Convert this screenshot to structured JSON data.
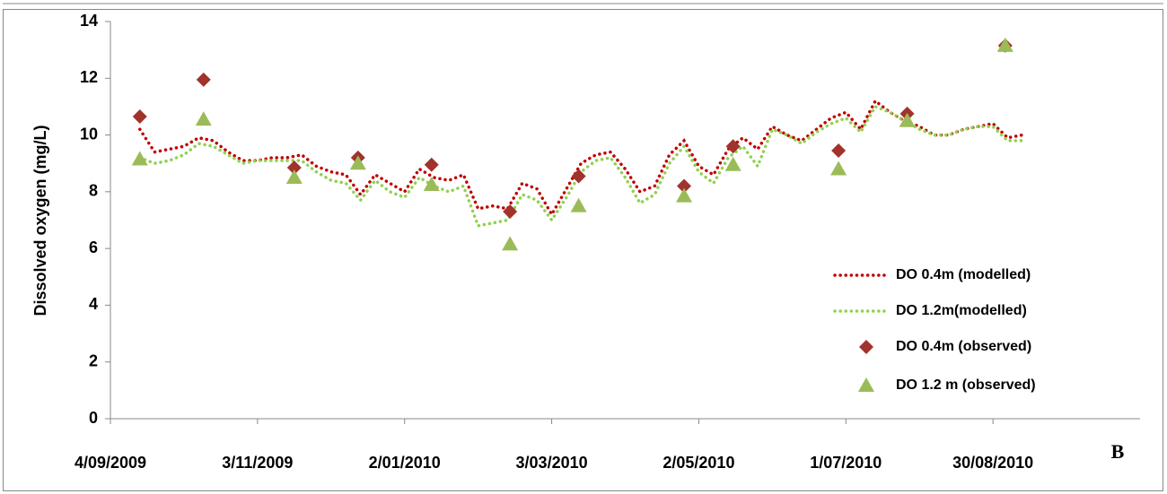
{
  "chart_data": {
    "type": "line",
    "y_label": "Dissolved oxygen (mg/L)",
    "annotation": "B",
    "xlim": [
      "2009-09-04",
      "2010-10-29"
    ],
    "xticks": [
      {
        "value": "2009-09-04",
        "label": "4/09/2009"
      },
      {
        "value": "2009-11-03",
        "label": "3/11/2009"
      },
      {
        "value": "2010-01-02",
        "label": "2/01/2010"
      },
      {
        "value": "2010-03-03",
        "label": "3/03/2010"
      },
      {
        "value": "2010-05-02",
        "label": "2/05/2010"
      },
      {
        "value": "2010-07-01",
        "label": "1/07/2010"
      },
      {
        "value": "2010-08-30",
        "label": "30/08/2010"
      }
    ],
    "ylim": [
      0,
      14
    ],
    "yticks": [
      0,
      2,
      4,
      6,
      8,
      10,
      12,
      14
    ],
    "grid": false,
    "series": [
      {
        "name": "DO 0.4m (modelled)",
        "type": "line",
        "color": "#c00000",
        "x": [
          "2009-09-16",
          "2009-09-22",
          "2009-09-28",
          "2009-10-04",
          "2009-10-10",
          "2009-10-16",
          "2009-10-22",
          "2009-10-28",
          "2009-11-03",
          "2009-11-09",
          "2009-11-15",
          "2009-11-21",
          "2009-11-27",
          "2009-12-03",
          "2009-12-09",
          "2009-12-15",
          "2009-12-21",
          "2009-12-27",
          "2010-01-02",
          "2010-01-08",
          "2010-01-14",
          "2010-01-20",
          "2010-01-26",
          "2010-02-01",
          "2010-02-07",
          "2010-02-13",
          "2010-02-19",
          "2010-02-25",
          "2010-03-03",
          "2010-03-09",
          "2010-03-15",
          "2010-03-21",
          "2010-03-27",
          "2010-04-02",
          "2010-04-08",
          "2010-04-14",
          "2010-04-20",
          "2010-04-26",
          "2010-05-02",
          "2010-05-08",
          "2010-05-14",
          "2010-05-20",
          "2010-05-26",
          "2010-06-01",
          "2010-06-07",
          "2010-06-13",
          "2010-06-19",
          "2010-06-25",
          "2010-07-01",
          "2010-07-07",
          "2010-07-13",
          "2010-07-19",
          "2010-07-25",
          "2010-07-31",
          "2010-08-06",
          "2010-08-12",
          "2010-08-18",
          "2010-08-24",
          "2010-08-30",
          "2010-09-05",
          "2010-09-11"
        ],
        "values": [
          10.2,
          9.4,
          9.5,
          9.6,
          9.9,
          9.8,
          9.4,
          9.1,
          9.1,
          9.2,
          9.2,
          9.3,
          8.9,
          8.7,
          8.6,
          7.9,
          8.6,
          8.3,
          8.0,
          8.8,
          8.5,
          8.4,
          8.6,
          7.4,
          7.5,
          7.4,
          8.3,
          8.1,
          7.2,
          8.1,
          9.0,
          9.3,
          9.4,
          8.8,
          8.0,
          8.2,
          9.3,
          9.8,
          8.9,
          8.6,
          9.5,
          9.9,
          9.5,
          10.3,
          10.0,
          9.8,
          10.2,
          10.6,
          10.8,
          10.2,
          11.2,
          10.8,
          10.5,
          10.3,
          10.0,
          10.0,
          10.2,
          10.3,
          10.4,
          9.9,
          10.0
        ]
      },
      {
        "name": "DO 1.2m(modelled)",
        "type": "line",
        "color": "#92d050",
        "x": [
          "2009-09-16",
          "2009-09-22",
          "2009-09-28",
          "2009-10-04",
          "2009-10-10",
          "2009-10-16",
          "2009-10-22",
          "2009-10-28",
          "2009-11-03",
          "2009-11-09",
          "2009-11-15",
          "2009-11-21",
          "2009-11-27",
          "2009-12-03",
          "2009-12-09",
          "2009-12-15",
          "2009-12-21",
          "2009-12-27",
          "2010-01-02",
          "2010-01-08",
          "2010-01-14",
          "2010-01-20",
          "2010-01-26",
          "2010-02-01",
          "2010-02-07",
          "2010-02-13",
          "2010-02-19",
          "2010-02-25",
          "2010-03-03",
          "2010-03-09",
          "2010-03-15",
          "2010-03-21",
          "2010-03-27",
          "2010-04-02",
          "2010-04-08",
          "2010-04-14",
          "2010-04-20",
          "2010-04-26",
          "2010-05-02",
          "2010-05-08",
          "2010-05-14",
          "2010-05-20",
          "2010-05-26",
          "2010-06-01",
          "2010-06-07",
          "2010-06-13",
          "2010-06-19",
          "2010-06-25",
          "2010-07-01",
          "2010-07-07",
          "2010-07-13",
          "2010-07-19",
          "2010-07-25",
          "2010-07-31",
          "2010-08-06",
          "2010-08-12",
          "2010-08-18",
          "2010-08-24",
          "2010-08-30",
          "2010-09-05",
          "2010-09-11"
        ],
        "values": [
          9.2,
          9.0,
          9.1,
          9.3,
          9.7,
          9.6,
          9.3,
          9.0,
          9.1,
          9.1,
          9.1,
          9.1,
          8.7,
          8.4,
          8.3,
          7.7,
          8.4,
          8.0,
          7.8,
          8.5,
          8.2,
          8.0,
          8.2,
          6.8,
          6.9,
          7.0,
          7.9,
          7.7,
          7.0,
          7.8,
          8.7,
          9.1,
          9.2,
          8.5,
          7.6,
          7.9,
          9.0,
          9.6,
          8.7,
          8.3,
          9.2,
          9.6,
          8.9,
          10.2,
          10.0,
          9.7,
          10.1,
          10.4,
          10.6,
          10.1,
          11.0,
          10.8,
          10.5,
          10.2,
          10.0,
          10.0,
          10.2,
          10.3,
          10.3,
          9.8,
          9.8
        ]
      },
      {
        "name": "DO 0.4m (observed)",
        "type": "scatter",
        "marker": "diamond",
        "color": "#a0332c",
        "x": [
          "2009-09-16",
          "2009-10-12",
          "2009-11-18",
          "2009-12-14",
          "2010-01-13",
          "2010-02-14",
          "2010-03-14",
          "2010-04-26",
          "2010-05-16",
          "2010-06-28",
          "2010-07-26",
          "2010-09-04"
        ],
        "values": [
          10.65,
          11.95,
          8.85,
          9.2,
          8.95,
          7.3,
          8.55,
          8.2,
          9.6,
          9.45,
          10.75,
          13.15
        ]
      },
      {
        "name": "DO 1.2 m (observed)",
        "type": "scatter",
        "marker": "triangle",
        "color": "#9bbb59",
        "x": [
          "2009-09-16",
          "2009-10-12",
          "2009-11-18",
          "2009-12-14",
          "2010-01-13",
          "2010-02-14",
          "2010-03-14",
          "2010-04-26",
          "2010-05-16",
          "2010-06-28",
          "2010-07-26",
          "2010-09-04"
        ],
        "values": [
          9.15,
          10.55,
          8.5,
          9.0,
          8.25,
          6.15,
          7.5,
          7.85,
          8.95,
          8.8,
          10.5,
          13.15
        ]
      }
    ]
  }
}
